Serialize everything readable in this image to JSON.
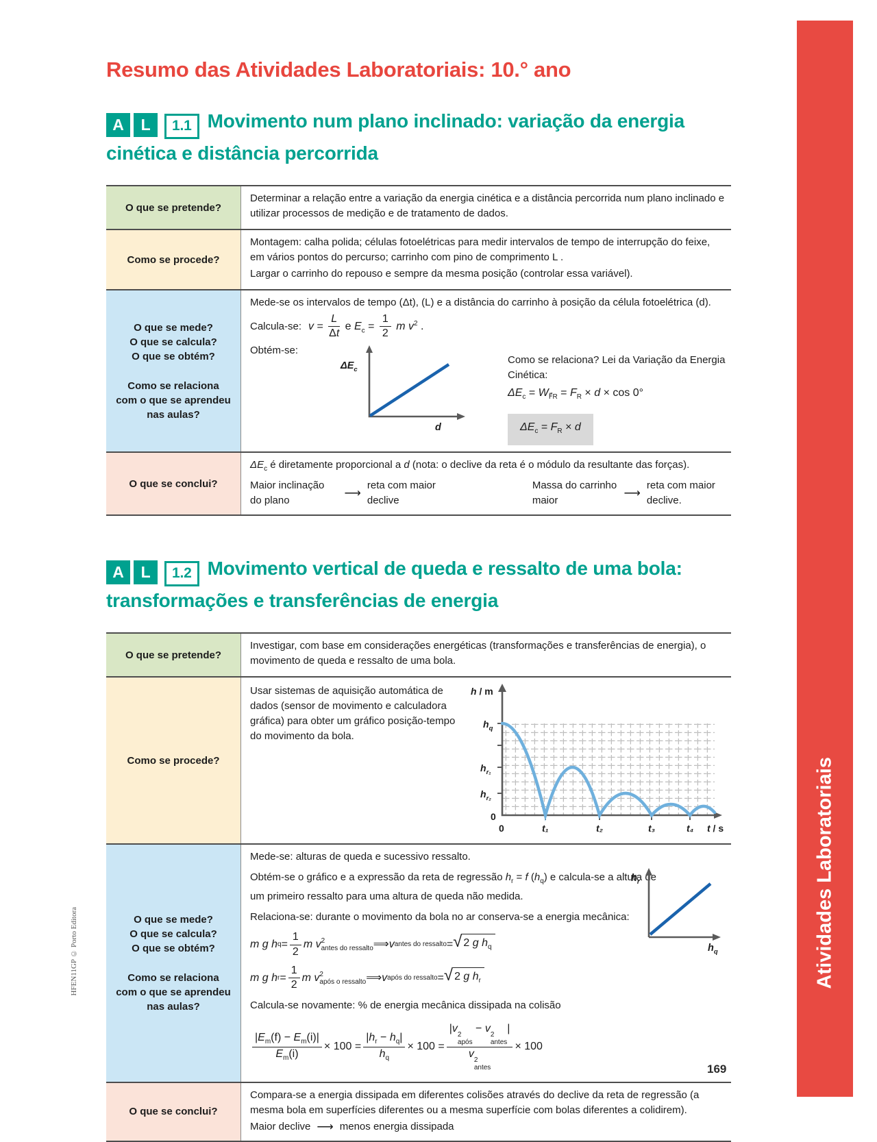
{
  "page": {
    "title": "Resumo das Atividades Laboratoriais: 10.° ano",
    "page_number": "169",
    "left_credit": "HFEN11GP © Porto Editora",
    "sidebar_label": "Atividades Laboratoriais"
  },
  "colors": {
    "accent_teal": "#00a18f",
    "accent_red": "#e8463e",
    "sidebar_red": "#e84a42",
    "graph_line_blue": "#1a63ad",
    "bounce_curve_blue": "#6fb0dd"
  },
  "s1": {
    "badges": {
      "a": "A",
      "l": "L",
      "num": "1.1"
    },
    "heading": "Movimento num plano inclinado: variação da energia cinética e distância percorrida",
    "pretende_label": "O que se pretende?",
    "pretende_text": "Determinar a relação entre a variação da energia cinética e a distância percorrida num plano inclinado e utilizar processos de medição e de tratamento de dados.",
    "procede_label": "Como se procede?",
    "procede_p1": "Montagem: calha polida; células fotoelétricas para medir intervalos de tempo de interrupção do feixe, em vários pontos do percurso; carrinho com pino de comprimento L .",
    "procede_p2": "Largar o carrinho do repouso e sempre da mesma posição (controlar essa variável).",
    "mede_label_1": "O que se mede?\nO que se calcula?\nO que se obtém?",
    "mede_label_2": "Como se relaciona\ncom o que se aprendeu\nnas aulas?",
    "mede_p1": "Mede-se os intervalos de tempo (Δt), (L) e a distância do carrinho à posição da célula fotoelétrica (d).",
    "calcula_prefix": "Calcula-se:",
    "calc_formula": [
      [
        "i",
        "v"
      ],
      [
        "t",
        " = "
      ],
      [
        "frac",
        [
          [
            "i",
            "L"
          ]
        ],
        [
          [
            "t",
            "Δ"
          ],
          [
            "i",
            "t"
          ]
        ]
      ],
      [
        "t",
        "  e  "
      ],
      [
        "i",
        "E"
      ],
      [
        "sub",
        "c"
      ],
      [
        "t",
        " = "
      ],
      [
        "frac",
        [
          [
            "t",
            "1"
          ]
        ],
        [
          [
            "t",
            "2"
          ]
        ]
      ],
      [
        "t",
        " "
      ],
      [
        "i",
        "m v"
      ],
      [
        "sup",
        "2"
      ],
      [
        "t",
        " ."
      ]
    ],
    "obtem_prefix": "Obtém-se:",
    "graph1": {
      "ylabel_i": "ΔE",
      "ylabel_sub": "c",
      "xlabel": "d"
    },
    "relaciona_title": "Como se relaciona? Lei da Variação da Energia Cinética:",
    "lei_formula": [
      [
        "i",
        "ΔE"
      ],
      [
        "sub",
        "c"
      ],
      [
        "t",
        " = "
      ],
      [
        "i",
        "W"
      ],
      [
        "sub",
        "F⃗R"
      ],
      [
        "t",
        " = "
      ],
      [
        "i",
        "F"
      ],
      [
        "sub",
        "R"
      ],
      [
        "t",
        " × "
      ],
      [
        "i",
        "d"
      ],
      [
        "t",
        " × cos 0°"
      ]
    ],
    "box_formula": [
      [
        "i",
        "ΔE"
      ],
      [
        "sub",
        "c"
      ],
      [
        "t",
        " = "
      ],
      [
        "i",
        "F"
      ],
      [
        "sub",
        "R"
      ],
      [
        "t",
        " × "
      ],
      [
        "i",
        "d"
      ]
    ],
    "conclui_label": "O que se conclui?",
    "conclui_p1": [
      [
        "i",
        "ΔE"
      ],
      [
        "sub",
        "c"
      ],
      [
        "t",
        " é diretamente proporcional a "
      ],
      [
        "i",
        "d"
      ],
      [
        "t",
        " (nota: o declive da reta é o módulo da resultante das forças)."
      ]
    ],
    "conclui_p2a": "Maior inclinação do plano",
    "conclui_arrow": "⟶",
    "conclui_p2b": "reta com maior declive",
    "conclui_p2c": "Massa do carrinho maior",
    "conclui_p2d": "reta com maior declive."
  },
  "s2": {
    "badges": {
      "a": "A",
      "l": "L",
      "num": "1.2"
    },
    "heading": "Movimento vertical de queda e ressalto de uma bola: transformações e transferências de energia",
    "pretende_label": "O que se pretende?",
    "pretende_text": "Investigar, com base em considerações energéticas (transformações e transferências de energia), o movimento de queda e ressalto de uma bola.",
    "procede_label": "Como se procede?",
    "procede_text": "Usar sistemas de aquisição automática de dados (sensor de movimento e calculadora gráfica) para obter um gráfico posição-tempo do movimento da bola.",
    "graph2": {
      "ylabel_i": "h",
      "ylabel_rest": " / m",
      "ytick_hq_b": "h",
      "ytick_hq_s": "q",
      "ytick_hr1_b": "h",
      "ytick_hr1_s": "r₁",
      "ytick_hr2_b": "h",
      "ytick_hr2_s": "r₂",
      "yzero": "0",
      "xzero": "0",
      "xticks": [
        "t₁",
        "t₂",
        "t₃",
        "t₄"
      ],
      "xlabel_i": "t",
      "xlabel_rest": " / s"
    },
    "mede_label_1": "O que se mede?\nO que se calcula?\nO que se obtém?",
    "mede_label_2": "Como se relaciona\ncom o que se aprendeu\nnas aulas?",
    "mede_p1": "Mede-se: alturas de queda e sucessivo ressalto.",
    "obtem_formula": [
      [
        "t",
        "Obtém-se o gráfico e a expressão da reta de regressão "
      ],
      [
        "i",
        "h"
      ],
      [
        "sub",
        "r"
      ],
      [
        "t",
        " = "
      ],
      [
        "i",
        "f"
      ],
      [
        "t",
        " ("
      ],
      [
        "i",
        "h"
      ],
      [
        "sub",
        "q"
      ],
      [
        "t",
        ") e calcula-se a altura de um primeiro ressalto para uma altura de queda não medida."
      ]
    ],
    "graph3": {
      "ylabel_b": "h",
      "ylabel_s": "r",
      "xlabel_b": "h",
      "xlabel_s": "q"
    },
    "relaciona_p": "Relaciona-se: durante o movimento da bola no ar conserva-se a energia mecânica:",
    "eq1": [
      [
        "i",
        "m g h"
      ],
      [
        "sub",
        "q"
      ],
      [
        "t",
        " = "
      ],
      [
        "frac",
        [
          [
            "t",
            "1"
          ]
        ],
        [
          [
            "t",
            "2"
          ]
        ]
      ],
      [
        "t",
        " "
      ],
      [
        "i",
        "m v"
      ],
      [
        "supsub",
        "2",
        "antes do ressalto"
      ],
      [
        "t",
        "  ⟹  "
      ],
      [
        "i",
        "v"
      ],
      [
        "sub",
        "antes do ressalto"
      ],
      [
        "t",
        " = "
      ],
      [
        "sqrt",
        [
          [
            "t",
            "2 "
          ],
          [
            "i",
            "g h"
          ],
          [
            "sub",
            "q"
          ]
        ]
      ]
    ],
    "eq2": [
      [
        "i",
        "m g h"
      ],
      [
        "sub",
        "r"
      ],
      [
        "t",
        " = "
      ],
      [
        "frac",
        [
          [
            "t",
            "1"
          ]
        ],
        [
          [
            "t",
            "2"
          ]
        ]
      ],
      [
        "t",
        " "
      ],
      [
        "i",
        "m v"
      ],
      [
        "supsub",
        "2",
        "após o ressalto"
      ],
      [
        "t",
        "  ⟹  "
      ],
      [
        "i",
        "v"
      ],
      [
        "sub",
        "após do ressalto"
      ],
      [
        "t",
        " = "
      ],
      [
        "sqrt",
        [
          [
            "t",
            "2 "
          ],
          [
            "i",
            "g h"
          ],
          [
            "sub",
            "r"
          ]
        ]
      ]
    ],
    "calc_again": "Calcula-se novamente: %  de energia mecânica dissipada na colisão",
    "big_formula": [
      [
        "frac",
        [
          [
            "t",
            "|"
          ],
          [
            "i",
            "E"
          ],
          [
            "sub",
            "m"
          ],
          [
            "t",
            "(f) − "
          ],
          [
            "i",
            "E"
          ],
          [
            "sub",
            "m"
          ],
          [
            "t",
            "(i)|"
          ]
        ],
        [
          [
            "i",
            "E"
          ],
          [
            "sub",
            "m"
          ],
          [
            "t",
            "(i)"
          ]
        ]
      ],
      [
        "t",
        "  × 100 = "
      ],
      [
        "frac",
        [
          [
            "t",
            "|"
          ],
          [
            "i",
            "h"
          ],
          [
            "sub",
            "r"
          ],
          [
            "t",
            " − "
          ],
          [
            "i",
            "h"
          ],
          [
            "sub",
            "q"
          ],
          [
            "t",
            "|"
          ]
        ],
        [
          [
            "i",
            "h"
          ],
          [
            "sub",
            "q"
          ]
        ]
      ],
      [
        "t",
        "  × 100 = "
      ],
      [
        "frac",
        [
          [
            "t",
            "|"
          ],
          [
            "i",
            "v"
          ],
          [
            "supsub",
            "2",
            "após"
          ],
          [
            "t",
            " − "
          ],
          [
            "i",
            "v"
          ],
          [
            "supsub",
            "2",
            "antes"
          ],
          [
            "t",
            "|"
          ]
        ],
        [
          [
            "i",
            "v"
          ],
          [
            "supsub",
            "2",
            "antes"
          ]
        ]
      ],
      [
        "t",
        "  × 100"
      ]
    ],
    "conclui_label": "O que se conclui?",
    "conclui_p1": "Compara-se a energia dissipada em diferentes colisões através do declive da reta de regressão (a mesma bola em superfícies diferentes ou a mesma superfície com bolas diferentes a colidirem).",
    "conclui_p2a": "Maior declive",
    "conclui_arrow": "⟶",
    "conclui_p2b": "menos energia dissipada"
  }
}
